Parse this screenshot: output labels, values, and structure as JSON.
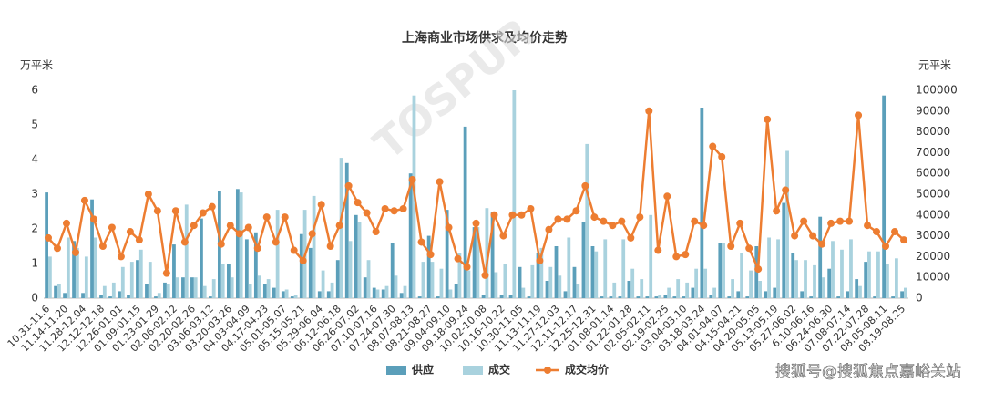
{
  "chart_data": {
    "type": "bar-line",
    "title": "上海商业市场供求及均价走势",
    "y_label": "万平米",
    "y2_label": "元平米",
    "watermark": "TOSPUR",
    "footer": "搜狐号@搜狐焦点嘉峪关站",
    "categories": [
      "10.31-11.6",
      null,
      "11.14-11.20",
      null,
      "11.28-12.04",
      null,
      "12.12-12.18",
      null,
      "12.26-01.01",
      null,
      "01.09-01.15",
      null,
      "01.23-01.29",
      null,
      "02.06-02.12",
      null,
      "02.20-02.26",
      null,
      "03.06-03.12",
      null,
      "03.20-03.26",
      null,
      "04.03-04.09",
      null,
      "04.17-04.23",
      null,
      "05.01-05.07",
      null,
      "05.15-05.21",
      null,
      "05.29-06.04",
      null,
      "06.12-06.18",
      null,
      "06.26-07.02",
      null,
      "07.10-07.16",
      null,
      "07.24-07.30",
      null,
      "08.07-08.13",
      null,
      "08.21-08.27",
      null,
      "09.04-09.10",
      null,
      "09.18-09.24",
      null,
      "10.02-10.08",
      null,
      "10.16-10.22",
      null,
      "10.30-11.05",
      null,
      "11.13-11.19",
      null,
      "11.27-12.03",
      null,
      "12.11-12.17",
      null,
      "12.25-12.31",
      null,
      "01.08-01.14",
      null,
      "01.22-01.28",
      null,
      "02.05-02.11",
      null,
      "02.19-02.25",
      null,
      "03.04-03.10",
      null,
      "03.18-03.24",
      null,
      "04.01-04.07",
      null,
      "04.15-04.21",
      null,
      "04.29-05.05",
      null,
      "05.13-05.19",
      null,
      "05.27-06.02",
      null,
      "6.10-06.16",
      null,
      "06.24-06.30",
      null,
      "07.08-07.14",
      null,
      "07.22-07.28",
      null,
      "08.05-08.11",
      null,
      "08.19-08.25"
    ],
    "series": [
      {
        "name": "供应",
        "kind": "bar",
        "color": "#5b9fba",
        "values": [
          3.05,
          0.35,
          0.15,
          1.65,
          0.15,
          2.85,
          0.1,
          0.05,
          0.2,
          0.1,
          1.1,
          0.4,
          0.05,
          0.45,
          1.55,
          0.6,
          0.6,
          2.3,
          0.05,
          3.1,
          1.0,
          3.15,
          1.7,
          1.9,
          0.4,
          0.3,
          0.2,
          0.05,
          1.85,
          1.45,
          0.2,
          0.2,
          1.1,
          3.9,
          2.4,
          0.6,
          0.3,
          0.25,
          1.6,
          0.15,
          3.6,
          0.05,
          1.8,
          0.05,
          2.55,
          0.4,
          4.95,
          2.05,
          0.1,
          2.5,
          0.1,
          0.1,
          0.9,
          0.05,
          1.3,
          0.5,
          1.5,
          0.2,
          0.9,
          2.2,
          1.5,
          0.05,
          0.05,
          0.05,
          0.5,
          0.05,
          0.05,
          0.05,
          0.1,
          0.05,
          0.05,
          0.3,
          5.5,
          0.1,
          1.6,
          0.05,
          0.2,
          0.05,
          1.5,
          0.2,
          0.3,
          2.75,
          1.3,
          0.2,
          0.05,
          2.35,
          0.85,
          0.05,
          0.2,
          0.55,
          1.05,
          0.05,
          5.85,
          0.05,
          0.2
        ]
      },
      {
        "name": "成交",
        "kind": "bar",
        "color": "#a9d2de",
        "values": [
          1.2,
          0.4,
          1.75,
          1.45,
          1.2,
          1.75,
          0.35,
          0.45,
          0.9,
          1.05,
          1.4,
          1.05,
          0.15,
          0.4,
          0.6,
          2.7,
          0.6,
          0.35,
          0.55,
          1.0,
          0.6,
          3.05,
          0.4,
          0.65,
          0.55,
          2.55,
          0.25,
          0.1,
          2.55,
          2.95,
          0.8,
          0.45,
          4.05,
          1.65,
          2.2,
          1.1,
          0.25,
          0.35,
          0.65,
          0.35,
          5.85,
          1.05,
          1.05,
          0.85,
          0.25,
          1.3,
          0.8,
          2.05,
          2.6,
          0.75,
          1.0,
          6.0,
          0.3,
          0.95,
          1.45,
          0.9,
          0.65,
          1.75,
          0.4,
          4.45,
          1.35,
          1.7,
          0.45,
          1.7,
          0.85,
          0.55,
          2.4,
          0.1,
          0.3,
          0.55,
          0.45,
          0.85,
          0.85,
          0.3,
          1.6,
          0.55,
          1.3,
          0.8,
          0.5,
          1.75,
          1.7,
          4.25,
          1.1,
          1.1,
          0.95,
          0.6,
          1.65,
          1.4,
          1.7,
          0.35,
          1.35,
          1.35,
          1.0,
          1.15,
          0.3
        ]
      },
      {
        "name": "成交均价",
        "kind": "line",
        "axis": "y2",
        "color": "#ed7d31",
        "values": [
          29000,
          24000,
          36000,
          22000,
          47000,
          38000,
          25000,
          34000,
          20000,
          32000,
          28000,
          50000,
          42000,
          12000,
          42000,
          27000,
          35000,
          41000,
          44000,
          26000,
          35000,
          31000,
          34000,
          24000,
          39000,
          27000,
          39000,
          23000,
          18000,
          31000,
          45000,
          25000,
          35000,
          54000,
          46000,
          41000,
          32000,
          43000,
          42000,
          43000,
          57000,
          27000,
          21000,
          56000,
          34000,
          19000,
          15000,
          36000,
          11000,
          40000,
          30000,
          40000,
          40000,
          43000,
          18000,
          33000,
          38000,
          38000,
          42000,
          54000,
          39000,
          37000,
          35000,
          37000,
          29000,
          39000,
          90000,
          23000,
          49000,
          20000,
          21000,
          37000,
          35000,
          73000,
          68000,
          25000,
          36000,
          24000,
          14000,
          86000,
          42000,
          52000,
          30000,
          37000,
          30000,
          26000,
          36000,
          37000,
          37000,
          88000,
          35000,
          32000,
          25000,
          32000,
          28000
        ]
      }
    ],
    "ylim": [
      0,
      6
    ],
    "yticks": [
      0,
      1,
      2,
      3,
      4,
      5,
      6
    ],
    "y2lim": [
      0,
      100000
    ],
    "y2ticks": [
      0,
      10000,
      20000,
      30000,
      40000,
      50000,
      60000,
      70000,
      80000,
      90000,
      100000
    ]
  }
}
